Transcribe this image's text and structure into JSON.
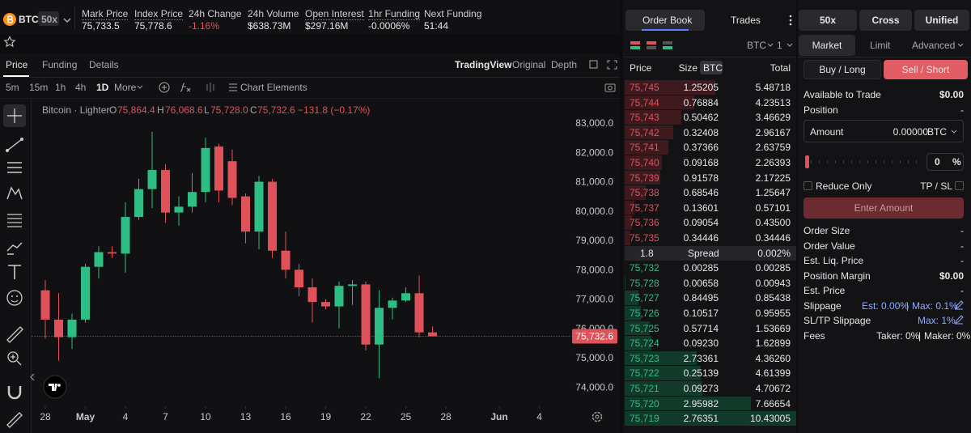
{
  "header": {
    "symbol": "BTC",
    "leverage": "50x",
    "stats": [
      {
        "label": "Mark Price",
        "value": "75,733.5",
        "dotted": true
      },
      {
        "label": "Index Price",
        "value": "75,778.6",
        "dotted": true
      },
      {
        "label": "24h Change",
        "value": "-1.16%",
        "negative": true
      },
      {
        "label": "24h Volume",
        "value": "$638.73M"
      },
      {
        "label": "Open Interest",
        "value": "$297.16M",
        "dotted": true
      },
      {
        "label": "1hr Funding",
        "value": "-0.0006%",
        "dotted": true
      },
      {
        "label": "Next Funding",
        "value": "51:44"
      }
    ]
  },
  "chart_tabs": [
    "Price",
    "Funding",
    "Details"
  ],
  "view_tabs": [
    "TradingView",
    "Original",
    "Depth"
  ],
  "intervals": [
    "5m",
    "15m",
    "1h",
    "4h",
    "1D",
    "More"
  ],
  "chart_elements": "Chart Elements",
  "legend": {
    "name": "Bitcoin · Lighter",
    "o": "O",
    "open": "75,864.4",
    "h": "H",
    "high": "76,068.6",
    "l": "L",
    "low": "75,728.0",
    "c": "C",
    "close": "75,732.6",
    "change": "−131.8 (−0.17%)"
  },
  "chart_data": {
    "type": "candlestick",
    "x": [
      0,
      1,
      2,
      3,
      4,
      5,
      6,
      7,
      8,
      9,
      10,
      11,
      12,
      13,
      14,
      15,
      16,
      17,
      18,
      19,
      20,
      21,
      22,
      23,
      24,
      25,
      26,
      27,
      28,
      29
    ],
    "open": [
      77300,
      76300,
      75700,
      76300,
      78100,
      78600,
      78550,
      79800,
      80750,
      81400,
      79950,
      80150,
      80650,
      82200,
      81700,
      80500,
      79300,
      81000,
      78650,
      78000,
      77400,
      76900,
      76750,
      77450,
      77500,
      75450,
      76700,
      76950,
      77200,
      75864.4
    ],
    "high": [
      77650,
      77200,
      76500,
      78200,
      78800,
      78800,
      80300,
      81100,
      82700,
      81600,
      80500,
      81300,
      82500,
      82300,
      82100,
      80600,
      81200,
      81100,
      79300,
      78200,
      77700,
      77000,
      77600,
      77650,
      77600,
      77300,
      77050,
      77400,
      77800,
      76068.6
    ],
    "low": [
      75650,
      74900,
      75300,
      76200,
      77700,
      78400,
      77900,
      79700,
      80100,
      79600,
      79500,
      79950,
      80300,
      80300,
      80200,
      78900,
      78700,
      78400,
      77700,
      77100,
      76200,
      76650,
      76000,
      76800,
      75250,
      74300,
      76300,
      76900,
      75700,
      75728.0
    ],
    "close": [
      76300,
      75700,
      76300,
      78100,
      78600,
      78550,
      79800,
      80750,
      81400,
      79950,
      80150,
      80650,
      82150,
      80700,
      80450,
      79300,
      81000,
      78650,
      78000,
      77400,
      76900,
      76750,
      77450,
      77500,
      75450,
      76700,
      76950,
      77200,
      75864.4,
      75732.6
    ],
    "up_color": "#2ebd85",
    "down_color": "#e0525a",
    "xlim": [
      -1,
      39.3
    ],
    "xticks": [
      {
        "value": 0,
        "label": "28"
      },
      {
        "value": 3,
        "label": "May"
      },
      {
        "value": 6,
        "label": "4"
      },
      {
        "value": 9,
        "label": "7"
      },
      {
        "value": 12,
        "label": "10"
      },
      {
        "value": 15,
        "label": "13"
      },
      {
        "value": 18,
        "label": "16"
      },
      {
        "value": 21,
        "label": "19"
      },
      {
        "value": 24,
        "label": "22"
      },
      {
        "value": 27,
        "label": "25"
      },
      {
        "value": 30,
        "label": "28"
      },
      {
        "value": 34,
        "label": "Jun"
      },
      {
        "value": 37,
        "label": "4"
      }
    ],
    "ylim": [
      73400,
      83940
    ],
    "yticks": [
      {
        "value": 74000,
        "label": "74,000.0"
      },
      {
        "value": 75000,
        "label": "75,000.0"
      },
      {
        "value": 76000,
        "label": "76,000.0"
      },
      {
        "value": 77000,
        "label": "77,000.0"
      },
      {
        "value": 78000,
        "label": "78,000.0"
      },
      {
        "value": 79000,
        "label": "79,000.0"
      },
      {
        "value": 80000,
        "label": "80,000.0"
      },
      {
        "value": 81000,
        "label": "81,000.0"
      },
      {
        "value": 82000,
        "label": "82,000.0"
      },
      {
        "value": 83000,
        "label": "83,000.0"
      }
    ],
    "last_price": {
      "value": 75732.6,
      "label": "75,732.6"
    },
    "grid": false
  },
  "order_book": {
    "tabs": [
      "Order Book",
      "Trades"
    ],
    "market": "BTC",
    "group": "1",
    "columns": {
      "price": "Price",
      "size": "Size",
      "unit": "BTC",
      "total": "Total"
    },
    "asks": [
      [
        "75,745",
        "1.25205",
        "5.48718"
      ],
      [
        "75,744",
        "0.76884",
        "4.23513"
      ],
      [
        "75,743",
        "0.50462",
        "3.46629"
      ],
      [
        "75,742",
        "0.32408",
        "2.96167"
      ],
      [
        "75,741",
        "0.37366",
        "2.63759"
      ],
      [
        "75,740",
        "0.09168",
        "2.26393"
      ],
      [
        "75,739",
        "0.91578",
        "2.17225"
      ],
      [
        "75,738",
        "0.68546",
        "1.25647"
      ],
      [
        "75,737",
        "0.13601",
        "0.57101"
      ],
      [
        "75,736",
        "0.09054",
        "0.43500"
      ],
      [
        "75,735",
        "0.34446",
        "0.34446"
      ]
    ],
    "spread": {
      "value": "1.8",
      "label": "Spread",
      "percent": "0.002%"
    },
    "bids": [
      [
        "75,732",
        "0.00285",
        "0.00285"
      ],
      [
        "75,728",
        "0.00658",
        "0.00943"
      ],
      [
        "75,727",
        "0.84495",
        "0.85438"
      ],
      [
        "75,726",
        "0.10517",
        "0.95955"
      ],
      [
        "75,725",
        "0.57714",
        "1.53669"
      ],
      [
        "75,724",
        "0.09230",
        "1.62899"
      ],
      [
        "75,723",
        "2.73361",
        "4.36260"
      ],
      [
        "75,722",
        "0.25139",
        "4.61399"
      ],
      [
        "75,721",
        "0.09273",
        "4.70672"
      ],
      [
        "75,720",
        "2.95982",
        "7.66654"
      ],
      [
        "75,719",
        "2.76351",
        "10.43005"
      ]
    ]
  },
  "panel": {
    "margin": [
      "50x",
      "Cross",
      "Unified"
    ],
    "order_types": [
      "Market",
      "Limit",
      "Advanced"
    ],
    "buy": "Buy / Long",
    "sell": "Sell / Short",
    "available": {
      "label": "Available to Trade",
      "value": "$0.00"
    },
    "position": {
      "label": "Position",
      "value": "-"
    },
    "amount": {
      "label": "Amount",
      "value": "0.00000",
      "unit": "BTC"
    },
    "percent": {
      "value": "0",
      "unit": "%"
    },
    "reduce_only": "Reduce Only",
    "tp_sl": "TP / SL",
    "submit": "Enter Amount",
    "details": [
      {
        "label": "Order Size",
        "value": "-"
      },
      {
        "label": "Order Value",
        "value": "-"
      },
      {
        "label": "Est. Liq. Price",
        "value": "-"
      },
      {
        "label": "Position Margin",
        "value": "$0.00"
      },
      {
        "label": "Est. Price",
        "value": "-"
      }
    ],
    "slippage": {
      "label": "Slippage",
      "est": "Est: 0.00%",
      "separator": "|",
      "max": "Max: 0.1%"
    },
    "sltp_slippage": {
      "label": "SL/TP Slippage",
      "max": "Max: 1%"
    },
    "fees": {
      "label": "Fees",
      "taker": "Taker: 0%",
      "separator": "|",
      "maker": "Maker: 0%"
    }
  }
}
